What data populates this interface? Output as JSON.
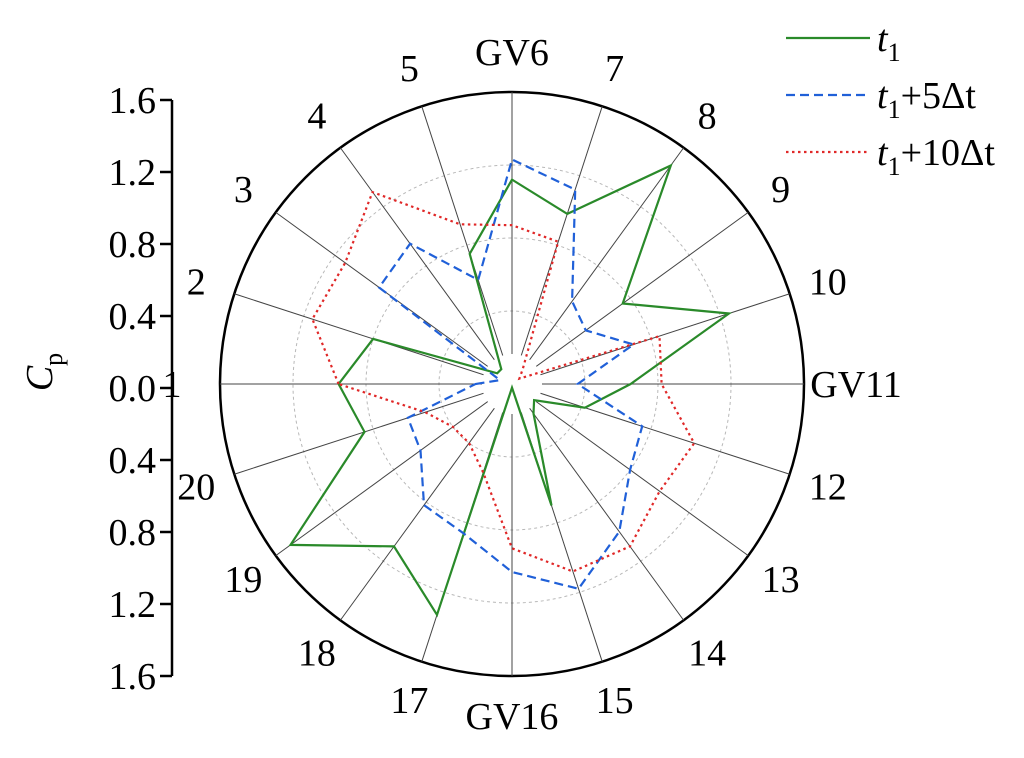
{
  "chart_data": {
    "type": "radar",
    "title": "",
    "ylabel_main": "C",
    "ylabel_sub": "p",
    "r_ticks": [
      "1.6",
      "1.2",
      "0.8",
      "0.4",
      "0.0",
      "0.4",
      "0.8",
      "1.2",
      "1.6"
    ],
    "r_max": 1.6,
    "categories": [
      "1",
      "2",
      "3",
      "4",
      "5",
      "GV6",
      "7",
      "8",
      "9",
      "10",
      "GV11",
      "12",
      "13",
      "14",
      "15",
      "GV16",
      "17",
      "18",
      "19",
      "20"
    ],
    "grid": true,
    "legend_position": "top-right",
    "series": [
      {
        "name_base": "t",
        "name_sub": "1",
        "name_suffix": "",
        "color": "#2a8a2a",
        "style": "solid",
        "values": [
          0.95,
          0.8,
          0.1,
          0.1,
          0.75,
          1.12,
          0.98,
          1.48,
          0.75,
          1.25,
          0.65,
          0.42,
          0.15,
          0.2,
          0.7,
          0.02,
          1.33,
          1.1,
          1.5,
          0.85
        ]
      },
      {
        "name_base": "t",
        "name_sub": "1",
        "name_suffix": "+5Δt",
        "color": "#2060d8",
        "style": "dashed",
        "values": [
          0.2,
          0.07,
          0.9,
          0.95,
          0.6,
          1.23,
          1.12,
          0.56,
          0.5,
          0.7,
          0.36,
          0.75,
          0.8,
          1.0,
          1.18,
          1.03,
          0.86,
          0.82,
          0.62,
          0.6
        ]
      },
      {
        "name_base": "t",
        "name_sub": "1",
        "name_suffix": "+10Δt",
        "color": "#e02828",
        "style": "dotted",
        "values": [
          0.95,
          1.15,
          1.13,
          1.3,
          0.92,
          0.87,
          0.82,
          0.1,
          0.05,
          0.85,
          0.82,
          1.05,
          1.0,
          1.1,
          1.08,
          0.9,
          0.51,
          0.4,
          0.4,
          0.5
        ]
      }
    ]
  }
}
